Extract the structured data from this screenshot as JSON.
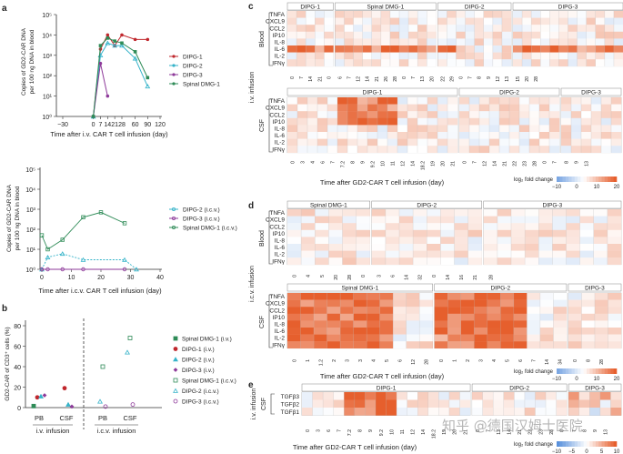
{
  "panels": {
    "a": "a",
    "b": "b",
    "c": "c",
    "d": "d",
    "e": "e"
  },
  "chart_a1": {
    "ylabel_line1": "Copies of GD2-CAR DNA",
    "ylabel_line2": "per 100 ng DNA in blood",
    "xlabel": "Time after i.v. CAR T cell infusion (day)",
    "xticks": [
      "−30",
      "0",
      "7",
      "14",
      "21",
      "28",
      "60",
      "90",
      "120"
    ],
    "yticks": [
      "10⁰",
      "10¹",
      "10²",
      "10³",
      "10⁴",
      "10⁵"
    ],
    "legend": [
      "DIPG-1",
      "DIPG-2",
      "DIPG-3",
      "Spinal DMG-1"
    ]
  },
  "chart_a2": {
    "ylabel_line1": "Copies of GD2-CAR DNA",
    "ylabel_line2": "per 100 ng DNA in blood",
    "xlabel": "Time after i.c.v. CAR T cell infusion (day)",
    "xticks": [
      "0",
      "10",
      "20",
      "30",
      "40"
    ],
    "yticks": [
      "10⁰",
      "10¹",
      "10²",
      "10³",
      "10⁴",
      "10⁵"
    ],
    "legend": [
      "DIPG-2 (i.c.v.)",
      "DIPG-3 (i.c.v.)",
      "Spinal DMG-1 (i.c.v.)"
    ]
  },
  "chart_b": {
    "ylabel": "GD2-CAR of CD3⁺ cells (%)",
    "yticks": [
      "0",
      "20",
      "40",
      "60",
      "80"
    ],
    "groups": [
      "PB",
      "CSF",
      "PB",
      "CSF"
    ],
    "group_labels": [
      "i.v. infusion",
      "i.c.v. infusion"
    ],
    "legend": [
      "Spinal DMG-1 (i.v.)",
      "DIPG-1 (i.v.)",
      "DIPG-2 (i.v.)",
      "DIPG-3 (i.v.)",
      "Spinal DMG-1 (i.c.v.)",
      "DIPG-2 (i.c.v.)",
      "DIPG-3 (i.c.v.)"
    ]
  },
  "heatmap_c": {
    "blood_headers": [
      "DIPG-1",
      "Spinal DMG-1",
      "DIPG-2",
      "DIPG-3"
    ],
    "csf_headers": [
      "DIPG-1",
      "DIPG-2",
      "DIPG-3"
    ],
    "cytokines": [
      "TNFA",
      "CXCL9",
      "CCL2",
      "IP10",
      "IL-8",
      "IL-6",
      "IL-2",
      "IFNγ"
    ],
    "side_blood": "Blood",
    "side_csf": "CSF",
    "route": "i.v. infusion",
    "blood_ticks": [
      "0",
      "7",
      "14",
      "21",
      "0",
      "6",
      "7",
      "12",
      "14",
      "21",
      "26",
      "28",
      "0",
      "7",
      "13",
      "20",
      "22",
      "29",
      "0",
      "7",
      "8",
      "9",
      "12",
      "13",
      "15",
      "20",
      "28"
    ],
    "csf_ticks": [
      "0",
      "3",
      "4",
      "6",
      "7",
      "7.2",
      "8",
      "9",
      "9.2",
      "10",
      "11",
      "12",
      "14",
      "18.2",
      "19",
      "20",
      "21",
      "0",
      "7",
      "12",
      "14",
      "21",
      "22",
      "23",
      "28",
      "0",
      "7",
      "8",
      "9",
      "13"
    ],
    "xlabel": "Time after GD2-CAR T cell infusion (day)",
    "scale_label": "log₂ fold change",
    "scale_ticks": [
      "−10",
      "0",
      "10",
      "20"
    ]
  },
  "heatmap_d": {
    "blood_headers": [
      "Spinal DMG-1",
      "DIPG-2",
      "DIPG-3"
    ],
    "csf_headers": [
      "Spinal DMG-1",
      "DIPG-2",
      "DIPG-3"
    ],
    "cytokines": [
      "TNFA",
      "CXCL9",
      "CCL2",
      "IP10",
      "IL-8",
      "IL-6",
      "IL-2",
      "IFNγ"
    ],
    "side_blood": "Blood",
    "side_csf": "CSF",
    "route": "i.c.v. infusion",
    "blood_ticks": [
      "0",
      "4",
      "5",
      "20",
      "28",
      "0",
      "3",
      "6",
      "14",
      "32",
      "0",
      "14",
      "16",
      "21",
      "28"
    ],
    "csf_ticks": [
      "0",
      "1",
      "1.2",
      "2",
      "3",
      "3",
      "4",
      "5",
      "6",
      "12",
      "28",
      "0",
      "1",
      "2",
      "3",
      "4",
      "5",
      "6",
      "7",
      "14",
      "34",
      "0",
      "8",
      "28"
    ],
    "xlabel": "Time after GD2-CAR T cell infusion (day)",
    "scale_label": "log₂ fold change",
    "scale_ticks": [
      "−10",
      "0",
      "10",
      "20"
    ]
  },
  "heatmap_e": {
    "headers": [
      "DIPG-1",
      "DIPG-2",
      "DIPG-3"
    ],
    "rows": [
      "TGFβ3",
      "TGFβ2",
      "TGFβ1"
    ],
    "side": "CSF",
    "route": "i.v. infusion",
    "ticks": [
      "0",
      "3",
      "6",
      "7",
      "7.2",
      "8",
      "9",
      "9.2",
      "10",
      "11",
      "12",
      "14",
      "18.2",
      "19",
      "20",
      "21",
      "0",
      "7",
      "12",
      "14",
      "21",
      "22",
      "23",
      "28",
      "0",
      "7",
      "8",
      "9",
      "13"
    ],
    "xlabel": "Time after GD2-CAR T cell infusion (day)",
    "scale_label": "log₂ fold change",
    "scale_ticks": [
      "−10",
      "−5",
      "0",
      "5",
      "10"
    ]
  },
  "watermark": "知乎 @德国汉姆士医院",
  "colors": {
    "dipg1": "#c0272d",
    "dipg2": "#35b3c9",
    "dipg3": "#8e3a9a",
    "sdmg1": "#2e8b57"
  },
  "chart_data": [
    {
      "type": "line",
      "ylabel": "Copies of GD2-CAR DNA per 100 ng DNA in blood",
      "xlabel": "Time after i.v. CAR T cell infusion (day)",
      "yscale": "log",
      "ylim": [
        1,
        100000
      ],
      "x_ticks": [
        -30,
        0,
        7,
        14,
        21,
        28,
        60,
        90,
        120
      ],
      "series": [
        {
          "name": "DIPG-1",
          "x": [
            0,
            7,
            14,
            21,
            28,
            60,
            90
          ],
          "y": [
            1,
            2000,
            10000,
            3000,
            10000,
            6000,
            6000
          ]
        },
        {
          "name": "DIPG-2",
          "x": [
            0,
            7,
            14,
            21,
            28,
            60,
            90
          ],
          "y": [
            1,
            1000,
            4000,
            3000,
            3000,
            700,
            30
          ]
        },
        {
          "name": "DIPG-3",
          "x": [
            0,
            7,
            14
          ],
          "y": [
            1,
            400,
            10
          ]
        },
        {
          "name": "Spinal DMG-1",
          "x": [
            0,
            7,
            14,
            21,
            28,
            60,
            90
          ],
          "y": [
            1,
            3000,
            7000,
            5000,
            4000,
            1500,
            80
          ]
        }
      ]
    },
    {
      "type": "line",
      "ylabel": "Copies of GD2-CAR DNA per 100 ng DNA in blood",
      "xlabel": "Time after i.c.v. CAR T cell infusion (day)",
      "yscale": "log",
      "ylim": [
        1,
        100000
      ],
      "x_ticks": [
        0,
        10,
        20,
        30,
        40
      ],
      "series": [
        {
          "name": "DIPG-2 (i.c.v.)",
          "x": [
            0,
            2,
            7,
            14,
            28,
            32
          ],
          "y": [
            1,
            4,
            6,
            3,
            3,
            1
          ]
        },
        {
          "name": "DIPG-3 (i.c.v.)",
          "x": [
            0,
            2,
            7,
            14,
            28
          ],
          "y": [
            1,
            1,
            1,
            1,
            1
          ]
        },
        {
          "name": "Spinal DMG-1 (i.c.v.)",
          "x": [
            0,
            2,
            7,
            14,
            20,
            28
          ],
          "y": [
            50,
            10,
            30,
            400,
            700,
            200
          ]
        }
      ]
    },
    {
      "type": "scatter",
      "ylabel": "GD2-CAR of CD3⁺ cells (%)",
      "ylim": [
        0,
        80
      ],
      "categories": [
        "PB (i.v.)",
        "CSF (i.v.)",
        "PB (i.c.v.)",
        "CSF (i.c.v.)"
      ],
      "series": [
        {
          "name": "Spinal DMG-1 (i.v.)",
          "values": [
            1.5,
            null,
            null,
            null
          ]
        },
        {
          "name": "DIPG-1 (i.v.)",
          "values": [
            10,
            19,
            null,
            null
          ]
        },
        {
          "name": "DIPG-2 (i.v.)",
          "values": [
            11,
            3,
            null,
            null
          ]
        },
        {
          "name": "DIPG-3 (i.v.)",
          "values": [
            12,
            1,
            null,
            null
          ]
        },
        {
          "name": "Spinal DMG-1 (i.c.v.)",
          "values": [
            null,
            null,
            40,
            68
          ]
        },
        {
          "name": "DIPG-2 (i.c.v.)",
          "values": [
            null,
            null,
            6,
            54
          ]
        },
        {
          "name": "DIPG-3 (i.c.v.)",
          "values": [
            null,
            null,
            1,
            3
          ]
        }
      ]
    }
  ]
}
